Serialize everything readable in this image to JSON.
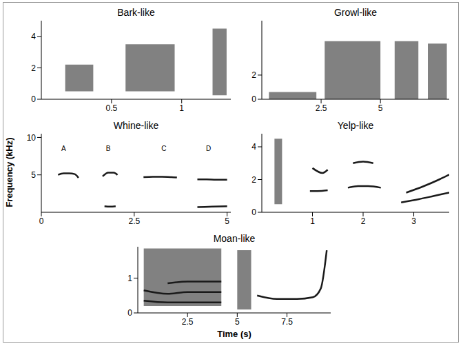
{
  "ylabel": "Frequency (kHz)",
  "xlabel": "Time (s)",
  "chart_data": [
    {
      "type": "spectrogram",
      "title": "Bark-like",
      "xlim": [
        0,
        1.35
      ],
      "ylim": [
        0,
        5
      ],
      "xticks": [
        0.5,
        1
      ],
      "yticks": [
        0,
        2,
        4
      ],
      "color": "#1a1a1a",
      "areas": [
        {
          "x": [
            0.17,
            0.37
          ],
          "y": [
            0.5,
            2.2
          ]
        },
        {
          "x": [
            0.6,
            0.95
          ],
          "y": [
            0.5,
            3.5
          ]
        },
        {
          "x": [
            1.22,
            1.32
          ],
          "y": [
            0.25,
            4.5
          ]
        }
      ],
      "lines": []
    },
    {
      "type": "spectrogram",
      "title": "Growl-like",
      "xlim": [
        0,
        7.9
      ],
      "ylim": [
        0,
        6.5
      ],
      "xticks": [
        2.5,
        5
      ],
      "yticks": [
        0,
        2
      ],
      "color": "#1a1a1a",
      "areas": [
        {
          "x": [
            0.3,
            2.3
          ],
          "y": [
            0,
            0.6
          ]
        },
        {
          "x": [
            2.65,
            5.0
          ],
          "y": [
            0,
            4.8
          ]
        },
        {
          "x": [
            5.6,
            6.6
          ],
          "y": [
            0,
            4.8
          ]
        },
        {
          "x": [
            7.0,
            7.8
          ],
          "y": [
            0,
            4.6
          ]
        }
      ],
      "lines": []
    },
    {
      "type": "spectrogram",
      "title": "Whine-like",
      "xlim": [
        0,
        5.1
      ],
      "ylim": [
        0,
        10.5
      ],
      "xticks": [
        0,
        2.5,
        5
      ],
      "yticks": [
        5,
        10
      ],
      "color": "#1a1a1a",
      "areas": [],
      "lines": [
        {
          "x": [
            0.45,
            0.6,
            0.75,
            0.9,
            1.0
          ],
          "values": [
            5.0,
            5.2,
            5.2,
            5.1,
            4.6
          ]
        },
        {
          "x": [
            1.65,
            1.8,
            1.95,
            2.05
          ],
          "values": [
            4.8,
            5.3,
            5.3,
            5.0
          ]
        },
        {
          "x": [
            1.7,
            1.85,
            2.0
          ],
          "values": [
            0.8,
            0.75,
            0.8
          ]
        },
        {
          "x": [
            2.75,
            3.0,
            3.25,
            3.5,
            3.65
          ],
          "values": [
            4.7,
            4.75,
            4.75,
            4.7,
            4.65
          ]
        },
        {
          "x": [
            4.2,
            4.45,
            4.7,
            5.0
          ],
          "values": [
            4.4,
            4.4,
            4.35,
            4.35
          ]
        },
        {
          "x": [
            4.2,
            4.6,
            5.0
          ],
          "values": [
            0.7,
            0.75,
            0.8
          ]
        }
      ],
      "annotations": [
        {
          "text": "A",
          "x": 0.6,
          "y": 8.5
        },
        {
          "text": "B",
          "x": 1.8,
          "y": 8.5
        },
        {
          "text": "C",
          "x": 3.3,
          "y": 8.5
        },
        {
          "text": "D",
          "x": 4.5,
          "y": 8.5
        }
      ]
    },
    {
      "type": "spectrogram",
      "title": "Yelp-like",
      "xlim": [
        0,
        3.7
      ],
      "ylim": [
        0,
        4.8
      ],
      "xticks": [
        1,
        2,
        3
      ],
      "yticks": [
        0,
        2,
        4
      ],
      "color": "#1a1a1a",
      "areas": [
        {
          "x": [
            0.25,
            0.4
          ],
          "y": [
            0.5,
            4.5
          ]
        }
      ],
      "lines": [
        {
          "x": [
            0.95,
            1.1,
            1.3
          ],
          "values": [
            1.3,
            1.3,
            1.35
          ]
        },
        {
          "x": [
            1.0,
            1.2,
            1.3
          ],
          "values": [
            2.7,
            2.4,
            2.6
          ]
        },
        {
          "x": [
            1.7,
            1.9,
            2.1,
            2.35
          ],
          "values": [
            1.5,
            1.6,
            1.6,
            1.5
          ]
        },
        {
          "x": [
            1.8,
            2.0,
            2.2
          ],
          "values": [
            3.0,
            3.1,
            3.0
          ]
        },
        {
          "x": [
            2.75,
            3.1,
            3.4,
            3.7
          ],
          "values": [
            0.6,
            0.8,
            1.0,
            1.2
          ]
        },
        {
          "x": [
            2.85,
            3.2,
            3.5,
            3.7
          ],
          "values": [
            1.2,
            1.6,
            2.0,
            2.3
          ]
        }
      ]
    },
    {
      "type": "spectrogram",
      "title": "Moan-like",
      "xlim": [
        0,
        9.7
      ],
      "ylim": [
        0,
        1.9
      ],
      "xticks": [
        2.5,
        5,
        7.5
      ],
      "yticks": [
        0,
        1
      ],
      "color": "#1a1a1a",
      "areas": [
        {
          "x": [
            0.3,
            4.2
          ],
          "y": [
            0.2,
            1.85
          ]
        },
        {
          "x": [
            5.0,
            5.7
          ],
          "y": [
            0.1,
            1.8
          ]
        }
      ],
      "lines": [
        {
          "x": [
            0.3,
            1.5,
            2.5,
            4.2
          ],
          "values": [
            0.35,
            0.3,
            0.3,
            0.3
          ]
        },
        {
          "x": [
            0.3,
            1.5,
            2.5,
            4.2
          ],
          "values": [
            0.65,
            0.55,
            0.6,
            0.6
          ]
        },
        {
          "x": [
            1.5,
            2.5,
            4.2
          ],
          "values": [
            0.85,
            0.9,
            0.9
          ]
        },
        {
          "x": [
            6.0,
            7.0,
            8.0,
            8.8,
            9.2,
            9.5
          ],
          "values": [
            0.5,
            0.4,
            0.4,
            0.45,
            0.7,
            1.8
          ]
        }
      ]
    }
  ]
}
